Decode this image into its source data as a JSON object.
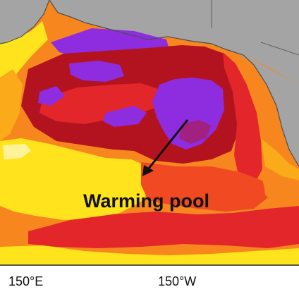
{
  "map": {
    "annotation": "Warming pool",
    "axis_ticks": [
      "150°E",
      "150°W"
    ]
  },
  "colors": {
    "land": "#a4a4a4",
    "coast": "#4e4e4e",
    "coldest": "#8e2de0",
    "dark_red": "#b3131f",
    "red": "#e3262a",
    "orange_red": "#f14a22",
    "orange": "#f7861f",
    "orange_yellow": "#fbaa19",
    "yellow": "#ffe31c",
    "pale_yellow": "#fff39a",
    "frame": "#222222"
  }
}
